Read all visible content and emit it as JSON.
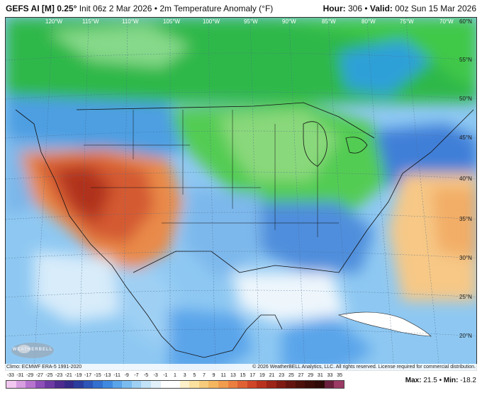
{
  "header": {
    "model": "GEFS AI [M] 0.25°",
    "init": "Init 06z 2 Mar 2026",
    "field": "2m Temperature Anomaly (°F)",
    "hour_label": "Hour:",
    "hour_value": "306",
    "valid_label": "Valid:",
    "valid_value": "00z Sun 15 Mar 2026"
  },
  "map": {
    "lon_labels": [
      "120°W",
      "115°W",
      "110°W",
      "105°W",
      "100°W",
      "95°W",
      "90°W",
      "85°W",
      "80°W",
      "75°W",
      "70°W",
      "60°N"
    ],
    "lat_labels": [
      "55°N",
      "50°N",
      "45°N",
      "40°N",
      "35°N",
      "30°N",
      "25°N",
      "20°N"
    ]
  },
  "footer": {
    "climo": "Climo: ECMWF ERA-5 1991-2020",
    "copyright": "© 2026 WeatherBELL Analytics, LLC. All rights reserved. License required for commercial distribution.",
    "logo": "WEATHERBELL"
  },
  "scale": {
    "labels": [
      "-33",
      "-31",
      "-29",
      "-27",
      "-25",
      "-23",
      "-21",
      "-19",
      "-17",
      "-15",
      "-13",
      "-11",
      "-9",
      "-7",
      "-5",
      "-3",
      "-1",
      "1",
      "3",
      "5",
      "7",
      "9",
      "11",
      "13",
      "15",
      "17",
      "19",
      "21",
      "23",
      "25",
      "27",
      "29",
      "31",
      "33",
      "35"
    ],
    "colors": [
      "#f2c8f0",
      "#d79ee0",
      "#b774cf",
      "#8e4fb8",
      "#6d3aa4",
      "#4d2b8f",
      "#352a88",
      "#2b3e9e",
      "#2d56b8",
      "#3370cf",
      "#3f8ae0",
      "#5aa4ea",
      "#7bbcf0",
      "#9fd0f4",
      "#c2e2f7",
      "#e2f0fa",
      "#ffffff",
      "#ffffff",
      "#fdf1c9",
      "#fae1a0",
      "#f7cc7c",
      "#f5b660",
      "#f29c4e",
      "#ec7f40",
      "#e06234",
      "#cf4628",
      "#b8321e",
      "#9c2418",
      "#7e1a12",
      "#64140e",
      "#4d100b",
      "#3b0c08",
      "#2e0906",
      "#6a1f3c",
      "#9b3a64"
    ]
  },
  "stats": {
    "max_label": "Max:",
    "max_value": "21.5",
    "min_label": "Min:",
    "min_value": "-18.2"
  },
  "colors": {
    "cold_green": "#3ec23e",
    "warm_orange": "#e07a3a",
    "ocean_blue": "#5aa8e6",
    "hot_red": "#b8321e"
  }
}
